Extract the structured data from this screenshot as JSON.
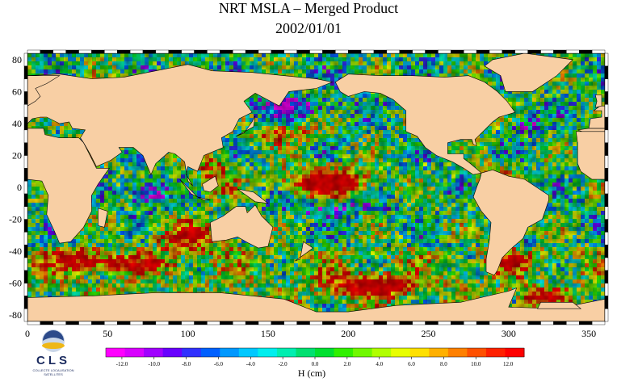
{
  "title": "NRT MSLA – Merged Product",
  "date": "2002/01/01",
  "map": {
    "projection": "equirectangular",
    "lon_range": [
      0,
      360
    ],
    "lat_range": [
      -84,
      84
    ],
    "x_ticks": [
      0,
      50,
      100,
      150,
      200,
      250,
      300,
      350
    ],
    "y_ticks": [
      80,
      60,
      40,
      20,
      0,
      -20,
      -40,
      -60,
      -80
    ],
    "land_color": "#f8cfa4",
    "coast_color": "#000000"
  },
  "colorbar": {
    "label": "H (cm)",
    "min": -13,
    "max": 13,
    "ticks": [
      "-12.0",
      "-10.0",
      "-8.0",
      "-6.0",
      "-4.0",
      "-2.0",
      "0.0",
      "2.0",
      "4.0",
      "6.0",
      "8.0",
      "10.0",
      "12.0"
    ],
    "colors": [
      "#ff00ff",
      "#d800ff",
      "#a000ff",
      "#6800ff",
      "#3030ff",
      "#0060ff",
      "#0098ff",
      "#00c8ff",
      "#00eeee",
      "#00eeb0",
      "#00e070",
      "#00e030",
      "#30f000",
      "#70f800",
      "#b0ff00",
      "#e8ff00",
      "#ffe000",
      "#ffb000",
      "#ff8000",
      "#ff5000",
      "#ff2000",
      "#ff0000"
    ]
  },
  "logo": {
    "name": "CLS",
    "subtitle": "COLLECTE LOCALISATION SATELLITES"
  },
  "icons": [
    "globe-logo-icon"
  ]
}
